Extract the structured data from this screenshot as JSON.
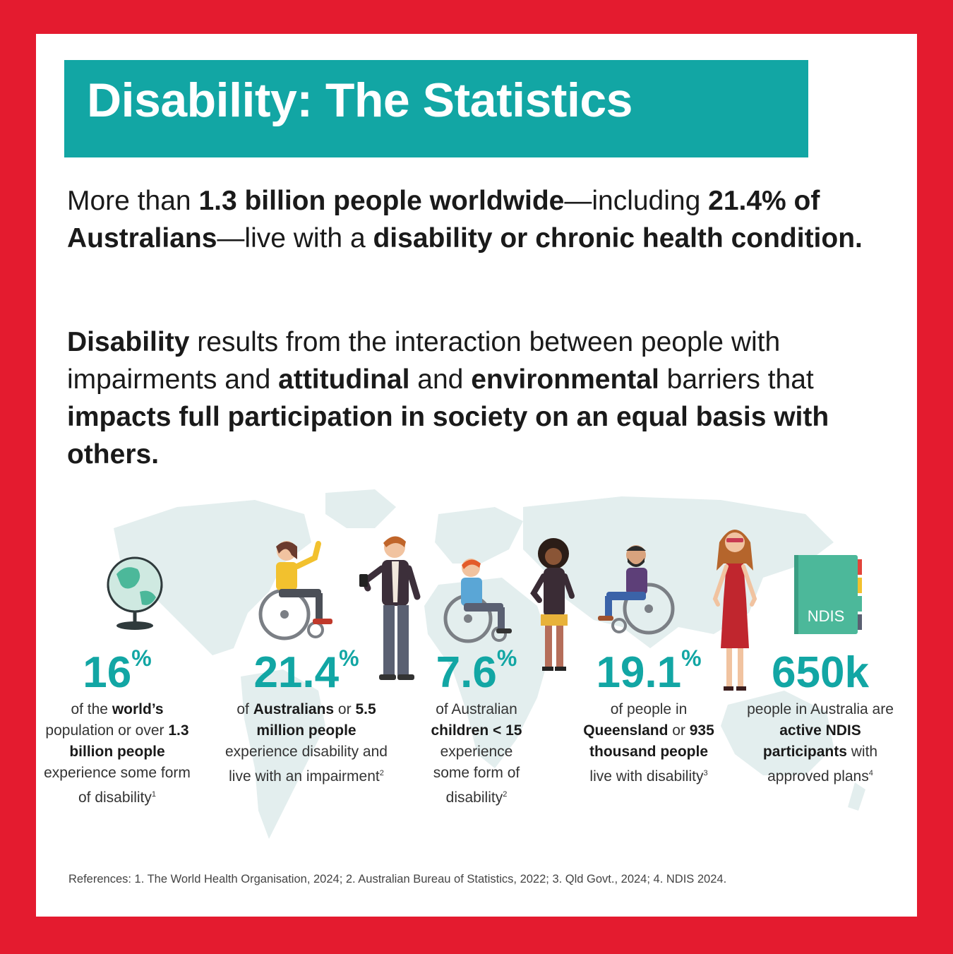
{
  "header": {
    "title": "Disability: The Statistics"
  },
  "intro": {
    "p1": [
      {
        "text": "More than ",
        "bold": false
      },
      {
        "text": "1.3 billion people worldwide",
        "bold": true
      },
      {
        "text": "—including ",
        "bold": false
      },
      {
        "text": "21.4% of Australians",
        "bold": true
      },
      {
        "text": "—live with a ",
        "bold": false
      },
      {
        "text": "disability or chronic health condition.",
        "bold": true
      }
    ],
    "p2": [
      {
        "text": "Disability",
        "bold": true
      },
      {
        "text": " results from the interaction between people with impairments and ",
        "bold": false
      },
      {
        "text": "attitudinal",
        "bold": true
      },
      {
        "text": " and ",
        "bold": false
      },
      {
        "text": "environmental",
        "bold": true
      },
      {
        "text": " barriers that ",
        "bold": false
      },
      {
        "text": "impacts full participation in society on an equal basis with others.",
        "bold": true
      }
    ]
  },
  "stats": [
    {
      "value": "16",
      "unit": "%",
      "desc": [
        {
          "text": "of the ",
          "bold": false
        },
        {
          "text": "world’s",
          "bold": true
        },
        {
          "text": " population or over ",
          "bold": false
        },
        {
          "text": "1.3 billion people",
          "bold": true
        },
        {
          "text": " experience some form of disability",
          "bold": false
        }
      ],
      "ref": "1"
    },
    {
      "value": "21.4",
      "unit": "%",
      "desc": [
        {
          "text": "of ",
          "bold": false
        },
        {
          "text": "Australians",
          "bold": true
        },
        {
          "text": " or ",
          "bold": false
        },
        {
          "text": "5.5 million people",
          "bold": true
        },
        {
          "text": " experience disability and live with an impairment",
          "bold": false
        }
      ],
      "ref": "2"
    },
    {
      "value": "7.6",
      "unit": "%",
      "desc": [
        {
          "text": "of Australian ",
          "bold": false
        },
        {
          "text": "children < 15",
          "bold": true
        },
        {
          "text": " experience some form of disability",
          "bold": false
        }
      ],
      "ref": "2"
    },
    {
      "value": "19.1",
      "unit": "%",
      "desc": [
        {
          "text": "of people in ",
          "bold": false
        },
        {
          "text": "Queensland",
          "bold": true
        },
        {
          "text": " or ",
          "bold": false
        },
        {
          "text": "935 thousand people",
          "bold": true
        },
        {
          "text": " live with disability",
          "bold": false
        }
      ],
      "ref": "3"
    },
    {
      "value": "650k",
      "unit": "",
      "desc": [
        {
          "text": "people in Australia are ",
          "bold": false
        },
        {
          "text": "active NDIS participants",
          "bold": true
        },
        {
          "text": " with approved plans",
          "bold": false
        }
      ],
      "ref": "4"
    }
  ],
  "ndis_label": "NDIS",
  "references": "References: 1. The World Health Organisation, 2024; 2. Australian Bureau of Statistics, 2022; 3. Qld Govt., 2024; 4. NDIS 2024.",
  "colors": {
    "frame": "#e41b2f",
    "accent": "#12a6a4",
    "text": "#1a1a1a",
    "map": "#e3eeee"
  }
}
